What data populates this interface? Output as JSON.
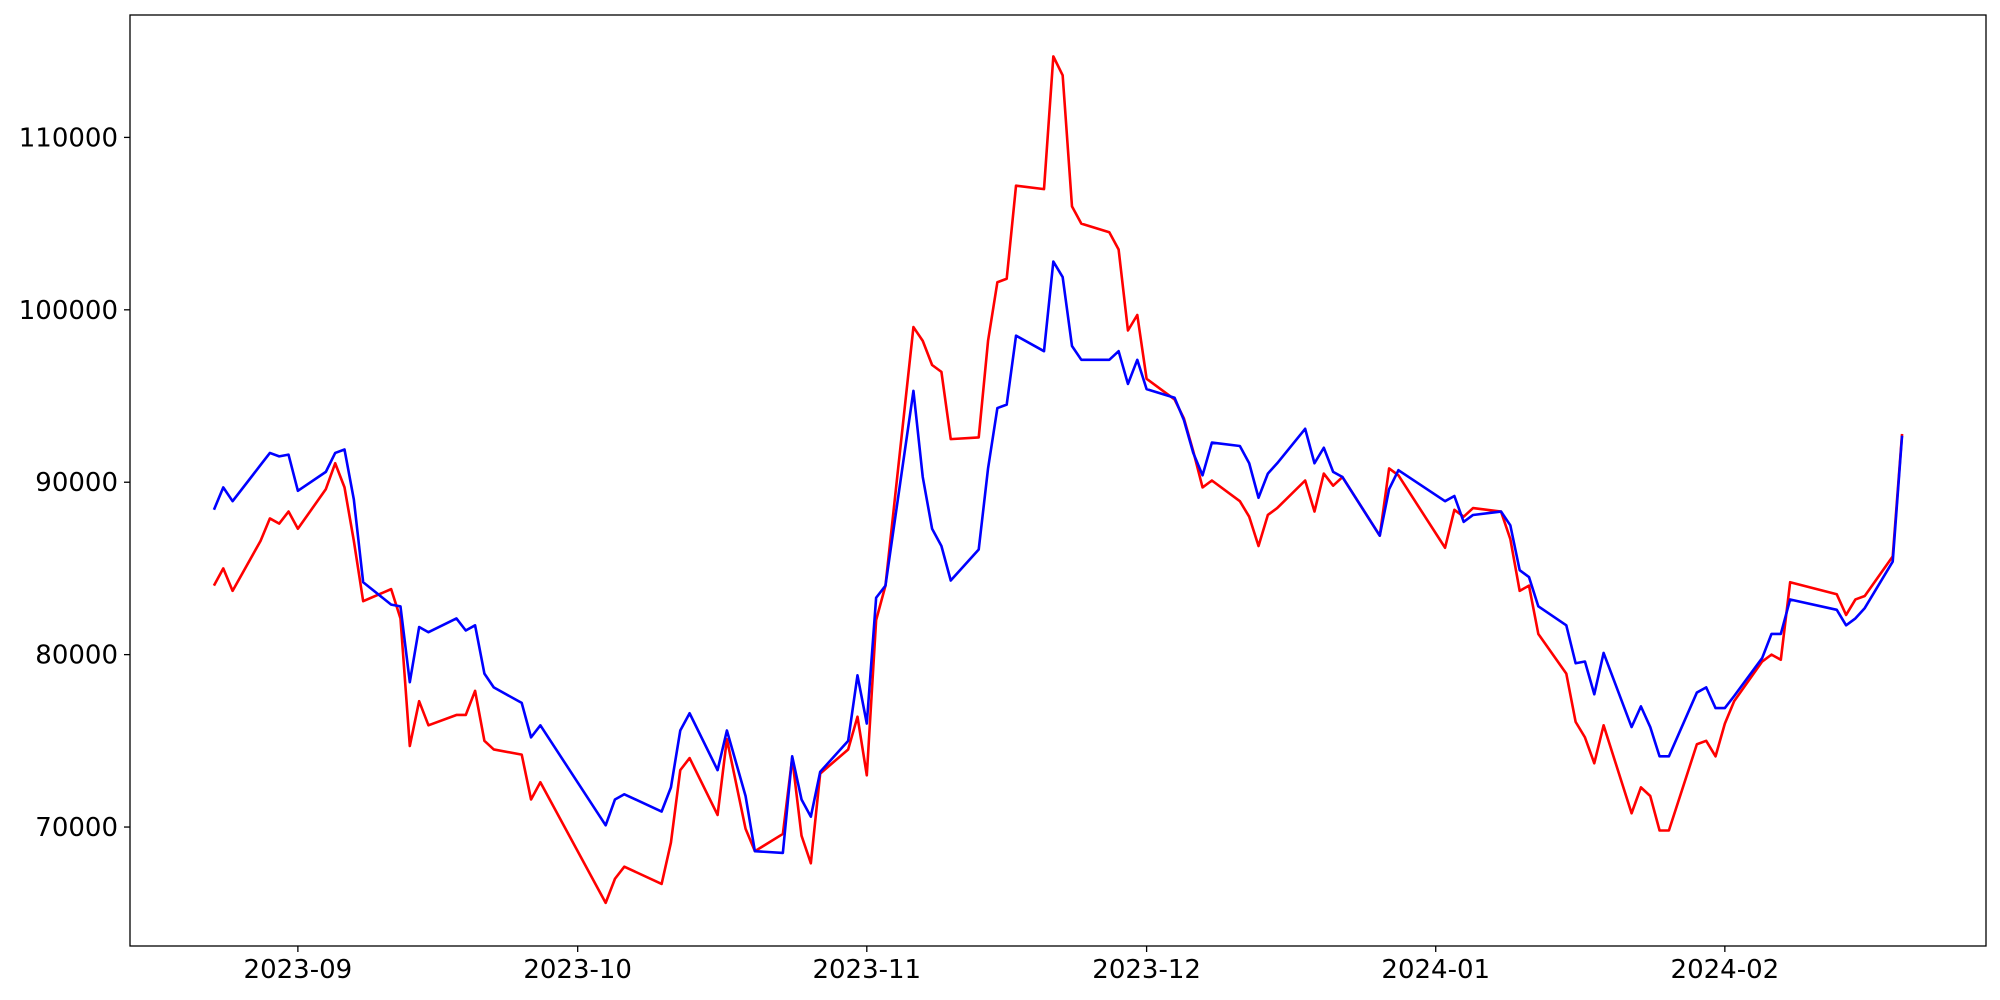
{
  "chart_data": {
    "type": "line",
    "x": [
      "2023-08-23",
      "2023-08-24",
      "2023-08-25",
      "2023-08-28",
      "2023-08-29",
      "2023-08-30",
      "2023-08-31",
      "2023-09-01",
      "2023-09-04",
      "2023-09-05",
      "2023-09-06",
      "2023-09-07",
      "2023-09-08",
      "2023-09-11",
      "2023-09-12",
      "2023-09-13",
      "2023-09-14",
      "2023-09-15",
      "2023-09-18",
      "2023-09-19",
      "2023-09-20",
      "2023-09-21",
      "2023-09-22",
      "2023-09-25",
      "2023-09-26",
      "2023-09-27",
      "2023-10-04",
      "2023-10-05",
      "2023-10-06",
      "2023-10-10",
      "2023-10-11",
      "2023-10-12",
      "2023-10-13",
      "2023-10-16",
      "2023-10-17",
      "2023-10-19",
      "2023-10-20",
      "2023-10-23",
      "2023-10-24",
      "2023-10-25",
      "2023-10-26",
      "2023-10-27",
      "2023-10-30",
      "2023-10-31",
      "2023-11-01",
      "2023-11-02",
      "2023-11-03",
      "2023-11-06",
      "2023-11-07",
      "2023-11-08",
      "2023-11-09",
      "2023-11-10",
      "2023-11-13",
      "2023-11-14",
      "2023-11-15",
      "2023-11-16",
      "2023-11-17",
      "2023-11-20",
      "2023-11-21",
      "2023-11-22",
      "2023-11-23",
      "2023-11-24",
      "2023-11-27",
      "2023-11-28",
      "2023-11-29",
      "2023-11-30",
      "2023-12-01",
      "2023-12-04",
      "2023-12-05",
      "2023-12-06",
      "2023-12-07",
      "2023-12-08",
      "2023-12-11",
      "2023-12-12",
      "2023-12-13",
      "2023-12-14",
      "2023-12-15",
      "2023-12-18",
      "2023-12-19",
      "2023-12-20",
      "2023-12-21",
      "2023-12-22",
      "2023-12-26",
      "2023-12-27",
      "2023-12-28",
      "2024-01-02",
      "2024-01-03",
      "2024-01-04",
      "2024-01-05",
      "2024-01-08",
      "2024-01-09",
      "2024-01-10",
      "2024-01-11",
      "2024-01-12",
      "2024-01-15",
      "2024-01-16",
      "2024-01-17",
      "2024-01-18",
      "2024-01-19",
      "2024-01-22",
      "2024-01-23",
      "2024-01-24",
      "2024-01-25",
      "2024-01-26",
      "2024-01-29",
      "2024-01-30",
      "2024-01-31",
      "2024-02-01",
      "2024-02-02",
      "2024-02-05",
      "2024-02-06",
      "2024-02-07",
      "2024-02-08",
      "2024-02-13",
      "2024-02-14",
      "2024-02-15",
      "2024-02-16",
      "2024-02-19",
      "2024-02-20"
    ],
    "series": [
      {
        "color": "#ff0000",
        "values": [
          84000,
          85000,
          83700,
          86600,
          87900,
          87600,
          88300,
          87300,
          89600,
          91100,
          89700,
          86600,
          83100,
          83800,
          82100,
          74700,
          77300,
          75900,
          76500,
          76500,
          77900,
          75000,
          74500,
          74200,
          71600,
          72600,
          65600,
          67000,
          67700,
          66700,
          69100,
          73300,
          74000,
          70700,
          75100,
          69900,
          68600,
          69600,
          74000,
          69500,
          67900,
          73100,
          74500,
          76400,
          73000,
          82000,
          84000,
          99000,
          98200,
          96800,
          96400,
          92500,
          92600,
          98200,
          101600,
          101800,
          107200,
          107000,
          114700,
          113600,
          106000,
          105000,
          104500,
          103500,
          98800,
          99700,
          96000,
          94800,
          93700,
          91800,
          89700,
          90100,
          88900,
          88000,
          86300,
          88100,
          88500,
          90100,
          88300,
          90500,
          89800,
          90300,
          86900,
          90800,
          90400,
          86200,
          88400,
          88000,
          88500,
          88300,
          86700,
          83700,
          84000,
          81200,
          78900,
          76100,
          75200,
          73700,
          75900,
          70800,
          72300,
          71800,
          69800,
          69800,
          74800,
          75000,
          74100,
          76000,
          77300,
          79600,
          80000,
          79700,
          84200,
          83500,
          82300,
          83200,
          83400,
          85700,
          92800
        ]
      },
      {
        "color": "#0000ff",
        "values": [
          88400,
          89700,
          88900,
          91000,
          91700,
          91500,
          91600,
          89500,
          90600,
          91700,
          91900,
          89000,
          84200,
          82900,
          82800,
          78400,
          81600,
          81300,
          82100,
          81400,
          81700,
          78900,
          78100,
          77200,
          75200,
          75900,
          70100,
          71600,
          71900,
          70900,
          72300,
          75600,
          76600,
          73300,
          75600,
          71800,
          68600,
          68500,
          74100,
          71600,
          70600,
          73200,
          75000,
          78800,
          76000,
          83300,
          84000,
          95300,
          90300,
          87300,
          86300,
          84300,
          86100,
          90800,
          94300,
          94500,
          98500,
          97600,
          102800,
          101900,
          97900,
          97100,
          97100,
          97600,
          95700,
          97100,
          95400,
          94900,
          93600,
          91700,
          90400,
          92300,
          92100,
          91100,
          89100,
          90500,
          91100,
          93100,
          91100,
          92000,
          90600,
          90300,
          86900,
          89600,
          90700,
          88900,
          89200,
          87700,
          88100,
          88300,
          87500,
          84900,
          84500,
          82800,
          81700,
          79500,
          79600,
          77700,
          80100,
          75800,
          77000,
          75800,
          74100,
          74100,
          77800,
          78100,
          76900,
          76900,
          77600,
          79800,
          81200,
          81200,
          83200,
          82600,
          81700,
          82100,
          82700,
          85400,
          92700
        ]
      }
    ],
    "xlim": [
      "2023-08-14",
      "2024-02-29"
    ],
    "xticks": [
      {
        "value": "2023-09-01",
        "label": "2023-09"
      },
      {
        "value": "2023-10-01",
        "label": "2023-10"
      },
      {
        "value": "2023-11-01",
        "label": "2023-11"
      },
      {
        "value": "2023-12-01",
        "label": "2023-12"
      },
      {
        "value": "2024-01-01",
        "label": "2024-01"
      },
      {
        "value": "2024-02-01",
        "label": "2024-02"
      }
    ],
    "ylim": [
      63100,
      117100
    ],
    "yticks": [
      70000,
      80000,
      90000,
      100000,
      110000
    ],
    "grid": false
  }
}
